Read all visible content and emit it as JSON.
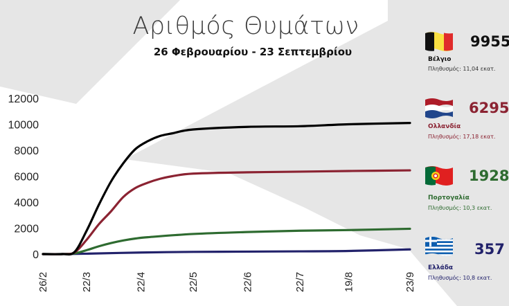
{
  "title": "Αριθμός Θυμάτων",
  "subtitle": "26 Φεβρουαρίου - 23 Σεπτεμβρίου",
  "colors": {
    "belgium": "#000000",
    "netherlands": "#8b2332",
    "portugal": "#2e6b30",
    "greece": "#22226b"
  },
  "countries": [
    {
      "id": "belgium",
      "name": "Βέλγιο",
      "deaths": "9955",
      "population": "Πληθυσμός: 11,04 εκατ.",
      "flag": "belgium-flag"
    },
    {
      "id": "netherlands",
      "name": "Ολλανδία",
      "deaths": "6295",
      "population": "Πληθυσμός: 17,18 εκατ.",
      "flag": "netherlands-flag"
    },
    {
      "id": "portugal",
      "name": "Πορτογαλία",
      "deaths": "1928",
      "population": "Πληθυσμός: 10,3 εκατ.",
      "flag": "portugal-flag"
    },
    {
      "id": "greece",
      "name": "Ελλάδα",
      "deaths": "357",
      "population": "Πληθυσμός: 10,8 εκατ.",
      "flag": "greece-flag"
    }
  ],
  "chart_data": {
    "type": "line",
    "title": "Αριθμός Θυμάτων",
    "subtitle": "26 Φεβρουαρίου - 23 Σεπτεμβρίου",
    "xlabel": "",
    "ylabel": "",
    "ylim": [
      0,
      12000
    ],
    "yticks": [
      0,
      2000,
      4000,
      6000,
      8000,
      10000,
      12000
    ],
    "xlim": [
      "26/2",
      "23/9"
    ],
    "xticks": [
      "26/2",
      "22/3",
      "22/4",
      "22/5",
      "22/6",
      "22/7",
      "19/8",
      "23/9"
    ],
    "grid": false,
    "legend": "right",
    "series": [
      {
        "name": "Βέλγιο",
        "color": "#000000",
        "x": [
          "26/2",
          "8/3",
          "15/3",
          "22/3",
          "29/3",
          "5/4",
          "12/4",
          "19/4",
          "26/4",
          "3/5",
          "10/5",
          "22/5",
          "22/6",
          "22/7",
          "19/8",
          "23/9"
        ],
        "y": [
          0,
          0,
          150,
          1800,
          3800,
          5600,
          7000,
          8100,
          8700,
          9100,
          9300,
          9600,
          9800,
          9850,
          10000,
          10100
        ]
      },
      {
        "name": "Ολλανδία",
        "color": "#8b2332",
        "x": [
          "26/2",
          "8/3",
          "15/3",
          "22/3",
          "29/3",
          "5/4",
          "12/4",
          "19/4",
          "26/4",
          "3/5",
          "10/5",
          "22/5",
          "22/6",
          "22/7",
          "19/8",
          "23/9"
        ],
        "y": [
          0,
          0,
          120,
          1100,
          2300,
          3300,
          4400,
          5100,
          5500,
          5800,
          6000,
          6200,
          6300,
          6350,
          6400,
          6450
        ]
      },
      {
        "name": "Πορτογαλία",
        "color": "#2e6b30",
        "x": [
          "26/2",
          "8/3",
          "15/3",
          "22/3",
          "29/3",
          "5/4",
          "12/4",
          "19/4",
          "26/4",
          "22/5",
          "22/6",
          "22/7",
          "19/8",
          "23/9"
        ],
        "y": [
          0,
          0,
          50,
          300,
          600,
          850,
          1050,
          1200,
          1300,
          1550,
          1700,
          1800,
          1850,
          1950
        ]
      },
      {
        "name": "Ελλάδα",
        "color": "#22226b",
        "x": [
          "26/2",
          "8/3",
          "22/3",
          "22/4",
          "22/5",
          "22/6",
          "22/7",
          "19/8",
          "23/9"
        ],
        "y": [
          0,
          0,
          30,
          120,
          170,
          190,
          210,
          240,
          360
        ]
      }
    ]
  }
}
